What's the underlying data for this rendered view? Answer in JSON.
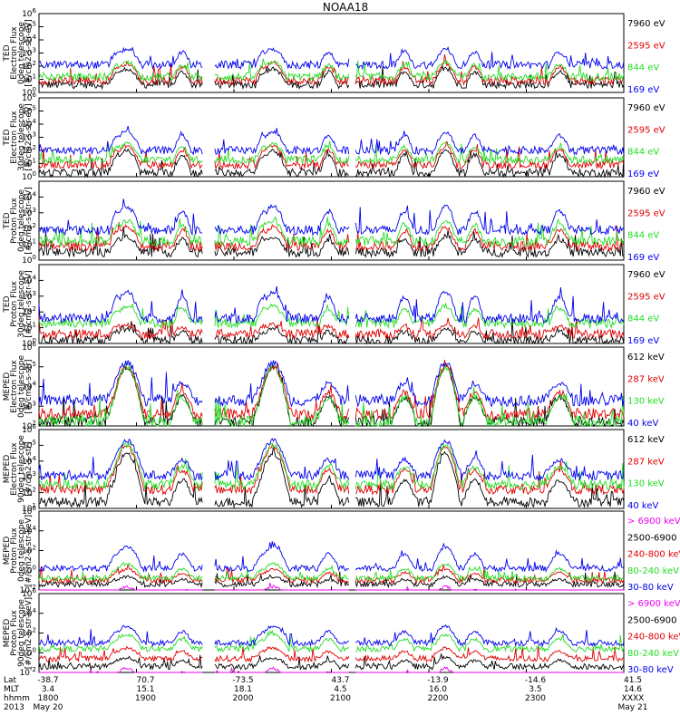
{
  "title": "NOAA18",
  "colors": {
    "black": "#000000",
    "red": "#e00000",
    "green": "#22dd22",
    "blue": "#0000ee",
    "magenta": "#ee00ee"
  },
  "chart_data": [
    {
      "type": "line",
      "instrument": "TED",
      "ylabel": [
        "TED",
        "Electron Flux",
        "0deg telescope",
        "[#/cm2-s-str-eV]"
      ],
      "ylim": [
        1,
        1000000
      ],
      "yscale": "log",
      "ytick_exponents": [
        0,
        1,
        2,
        3,
        4,
        5,
        6
      ],
      "series": [
        {
          "name": "7960 eV",
          "color": "black",
          "shape": "ted",
          "base": 0.6,
          "peak": 1.8
        },
        {
          "name": "2595 eV",
          "color": "red",
          "shape": "ted",
          "base": 0.9,
          "peak": 2.2
        },
        {
          "name": "844 eV",
          "color": "green",
          "shape": "ted",
          "base": 1.2,
          "peak": 2.3
        },
        {
          "name": "169 eV",
          "color": "blue",
          "shape": "ted",
          "base": 2.1,
          "peak": 3.3
        }
      ]
    },
    {
      "type": "line",
      "instrument": "TED",
      "ylabel": [
        "TED",
        "Electron Flux",
        "30deg telescope",
        "[#/cm2-s-str-eV]"
      ],
      "ylim": [
        1,
        1000000
      ],
      "yscale": "log",
      "ytick_exponents": [
        0,
        1,
        2,
        3,
        4,
        5,
        6
      ],
      "series": [
        {
          "name": "7960 eV",
          "color": "black",
          "shape": "ted",
          "base": 0.3,
          "peak": 2.0
        },
        {
          "name": "2595 eV",
          "color": "red",
          "shape": "ted",
          "base": 0.9,
          "peak": 2.3
        },
        {
          "name": "844 eV",
          "color": "green",
          "shape": "ted",
          "base": 1.3,
          "peak": 2.5
        },
        {
          "name": "169 eV",
          "color": "blue",
          "shape": "ted",
          "base": 2.0,
          "peak": 3.4
        }
      ]
    },
    {
      "type": "line",
      "instrument": "TED",
      "ylabel": [
        "TED",
        "Proton Flux",
        "0deg telescope",
        "[#/cm2-s-str-eV]"
      ],
      "ylim": [
        1,
        100000
      ],
      "yscale": "log",
      "ytick_exponents": [
        0,
        1,
        2,
        3,
        4
      ],
      "series": [
        {
          "name": "7960 eV",
          "color": "black",
          "shape": "ted",
          "base": 0.5,
          "peak": 1.5
        },
        {
          "name": "2595 eV",
          "color": "red",
          "shape": "ted",
          "base": 0.9,
          "peak": 2.1
        },
        {
          "name": "844 eV",
          "color": "green",
          "shape": "ted",
          "base": 1.2,
          "peak": 2.5
        },
        {
          "name": "169 eV",
          "color": "blue",
          "shape": "ted",
          "base": 1.9,
          "peak": 3.4
        }
      ]
    },
    {
      "type": "line",
      "instrument": "TED",
      "ylabel": [
        "TED",
        "Proton Flux",
        "30deg telescope",
        "[#/cm2-s-str-eV]"
      ],
      "ylim": [
        1,
        100000
      ],
      "yscale": "log",
      "ytick_exponents": [
        0,
        1,
        2,
        3,
        4
      ],
      "series": [
        {
          "name": "7960 eV",
          "color": "black",
          "shape": "ted",
          "base": 0.2,
          "peak": 0.9
        },
        {
          "name": "2595 eV",
          "color": "red",
          "shape": "ted",
          "base": 0.6,
          "peak": 1.2
        },
        {
          "name": "844 eV",
          "color": "green",
          "shape": "ted",
          "base": 1.3,
          "peak": 2.4
        },
        {
          "name": "169 eV",
          "color": "blue",
          "shape": "ted",
          "base": 1.6,
          "peak": 3.3
        }
      ]
    },
    {
      "type": "line",
      "instrument": "MEPED",
      "ylabel": [
        "MEPED",
        "Electron Flux",
        "0deg telescope",
        "[#/cm2-s-str]"
      ],
      "ylim": [
        100,
        1000000
      ],
      "yscale": "log",
      "ytick_exponents": [
        2,
        3,
        4,
        5,
        6
      ],
      "series": [
        {
          "name": "612 keV",
          "color": "black",
          "shape": "meped",
          "base": 2.2,
          "peak": 5.0
        },
        {
          "name": "287 keV",
          "color": "red",
          "shape": "meped",
          "base": 2.6,
          "peak": 5.0
        },
        {
          "name": "130 keV",
          "color": "green",
          "shape": "meped",
          "base": 2.2,
          "peak": 5.0
        },
        {
          "name": "40 keV",
          "color": "blue",
          "shape": "meped",
          "base": 3.3,
          "peak": 5.2
        }
      ]
    },
    {
      "type": "line",
      "instrument": "MEPED",
      "ylabel": [
        "MEPED",
        "Electron Flux",
        "90deg telescope",
        "[#/cm2-s-str]"
      ],
      "ylim": [
        10,
        1000000
      ],
      "yscale": "log",
      "ytick_exponents": [
        1,
        2,
        3,
        4,
        5,
        6
      ],
      "series": [
        {
          "name": "612 keV",
          "color": "black",
          "shape": "meped",
          "base": 1.4,
          "peak": 4.5
        },
        {
          "name": "287 keV",
          "color": "red",
          "shape": "meped",
          "base": 2.2,
          "peak": 4.9
        },
        {
          "name": "130 keV",
          "color": "green",
          "shape": "meped",
          "base": 2.5,
          "peak": 5.0
        },
        {
          "name": "40 keV",
          "color": "blue",
          "shape": "meped",
          "base": 3.1,
          "peak": 5.3
        }
      ]
    },
    {
      "type": "line",
      "instrument": "MEPED",
      "ylabel": [
        "MEPED",
        "Proton Flux",
        "0deg telescope",
        "[#/cm2-s-str-keV]"
      ],
      "ylim": [
        0.01,
        1000000
      ],
      "yscale": "log",
      "ytick_exponents": [
        -2,
        0,
        2,
        4,
        6
      ],
      "series": [
        {
          "name": "> 6900 keV",
          "color": "magenta",
          "shape": "proton",
          "base": -3.0,
          "peak": -1.5
        },
        {
          "name": "2500-6900",
          "color": "black",
          "shape": "proton",
          "base": -1.4,
          "peak": -0.6
        },
        {
          "name": "240-800 keV",
          "color": "red",
          "shape": "proton",
          "base": -1.0,
          "peak": 0.2
        },
        {
          "name": "80-240 keV",
          "color": "green",
          "shape": "proton",
          "base": -0.8,
          "peak": 0.8
        },
        {
          "name": "30-80 keV",
          "color": "blue",
          "shape": "proton",
          "base": 0.2,
          "peak": 2.6
        }
      ]
    },
    {
      "type": "line",
      "instrument": "MEPED",
      "ylabel": [
        "MEPED",
        "Proton Flux",
        "90deg telescope",
        "[#/cm2-s-str-keV]"
      ],
      "ylim": [
        0.01,
        1000000
      ],
      "yscale": "log",
      "ytick_exponents": [
        -2,
        0,
        2,
        4,
        6
      ],
      "series": [
        {
          "name": "> 6900 keV",
          "color": "magenta",
          "shape": "proton",
          "base": -3.0,
          "peak": -1.4
        },
        {
          "name": "2500-6900",
          "color": "black",
          "shape": "proton",
          "base": -1.4,
          "peak": -0.4
        },
        {
          "name": "240-800 keV",
          "color": "red",
          "shape": "proton",
          "base": -0.6,
          "peak": 0.6
        },
        {
          "name": "80-240 keV",
          "color": "green",
          "shape": "proton",
          "base": 0.4,
          "peak": 2.0
        },
        {
          "name": "30-80 keV",
          "color": "blue",
          "shape": "proton",
          "base": 1.0,
          "peak": 2.9
        }
      ]
    }
  ],
  "time_axis": {
    "row_labels": [
      "Lat",
      "MLT",
      "hhmm",
      "2013"
    ],
    "columns": [
      {
        "lat": "-38.7",
        "mlt": "3.4",
        "hhmm": "1800",
        "date": "May 20"
      },
      {
        "lat": "70.7",
        "mlt": "15.1",
        "hhmm": "1900",
        "date": ""
      },
      {
        "lat": "-73.5",
        "mlt": "18.1",
        "hhmm": "2000",
        "date": ""
      },
      {
        "lat": "43.7",
        "mlt": "4.5",
        "hhmm": "2100",
        "date": ""
      },
      {
        "lat": "-13.9",
        "mlt": "16.0",
        "hhmm": "2200",
        "date": ""
      },
      {
        "lat": "-14.6",
        "mlt": "3.5",
        "hhmm": "2300",
        "date": ""
      },
      {
        "lat": "41.5",
        "mlt": "14.6",
        "hhmm": "XXXX",
        "date": "May 21"
      }
    ]
  }
}
